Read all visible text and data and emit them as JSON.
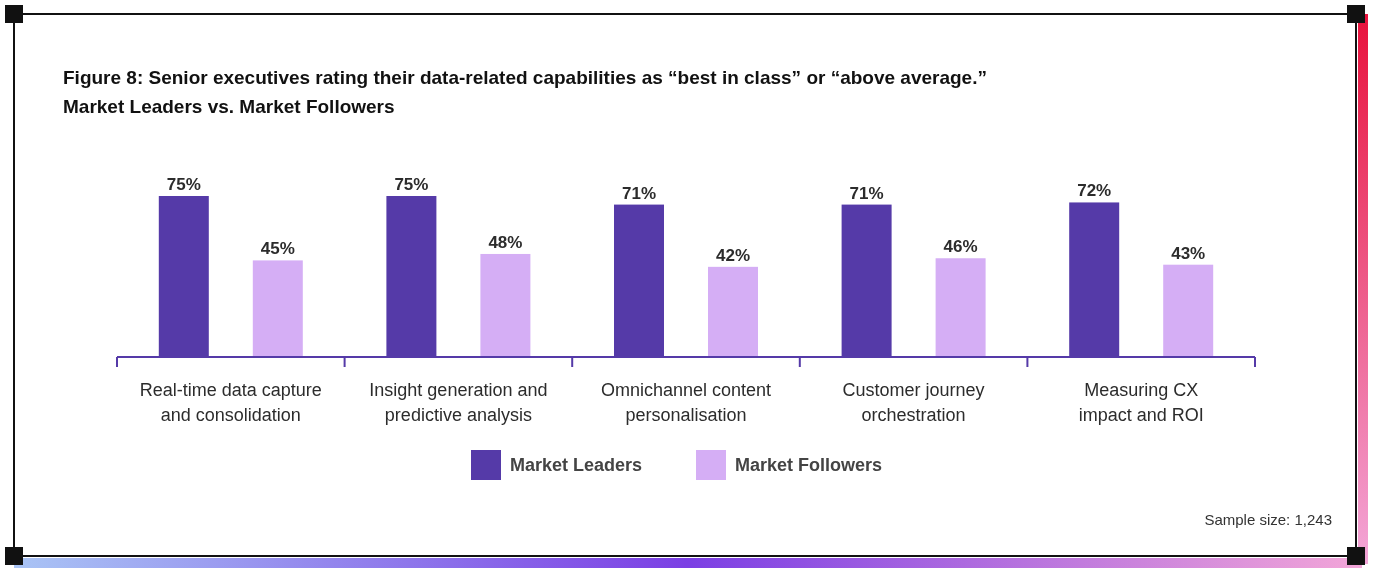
{
  "chart_data": {
    "type": "bar",
    "title": "Figure 8: Senior executives rating their data-related capabilities as “best in class” or “above average.”",
    "subtitle": "Market Leaders vs. Market Followers",
    "categories": [
      "Real-time data capture and consolidation",
      "Insight generation and predictive analysis",
      "Omnichannel content personalisation",
      "Customer journey orchestration",
      "Measuring CX impact and ROI"
    ],
    "series": [
      {
        "name": "Market Leaders",
        "color": "#553aa8",
        "values": [
          75,
          75,
          71,
          71,
          72
        ],
        "value_labels": [
          "75%",
          "75%",
          "71%",
          "71%",
          "72%"
        ]
      },
      {
        "name": "Market Followers",
        "color": "#d5aef5",
        "values": [
          45,
          48,
          42,
          46,
          43
        ],
        "value_labels": [
          "45%",
          "48%",
          "42%",
          "46%",
          "43%"
        ]
      }
    ],
    "legend": "bottom",
    "annotations": [
      "Sample size: 1,243"
    ]
  }
}
